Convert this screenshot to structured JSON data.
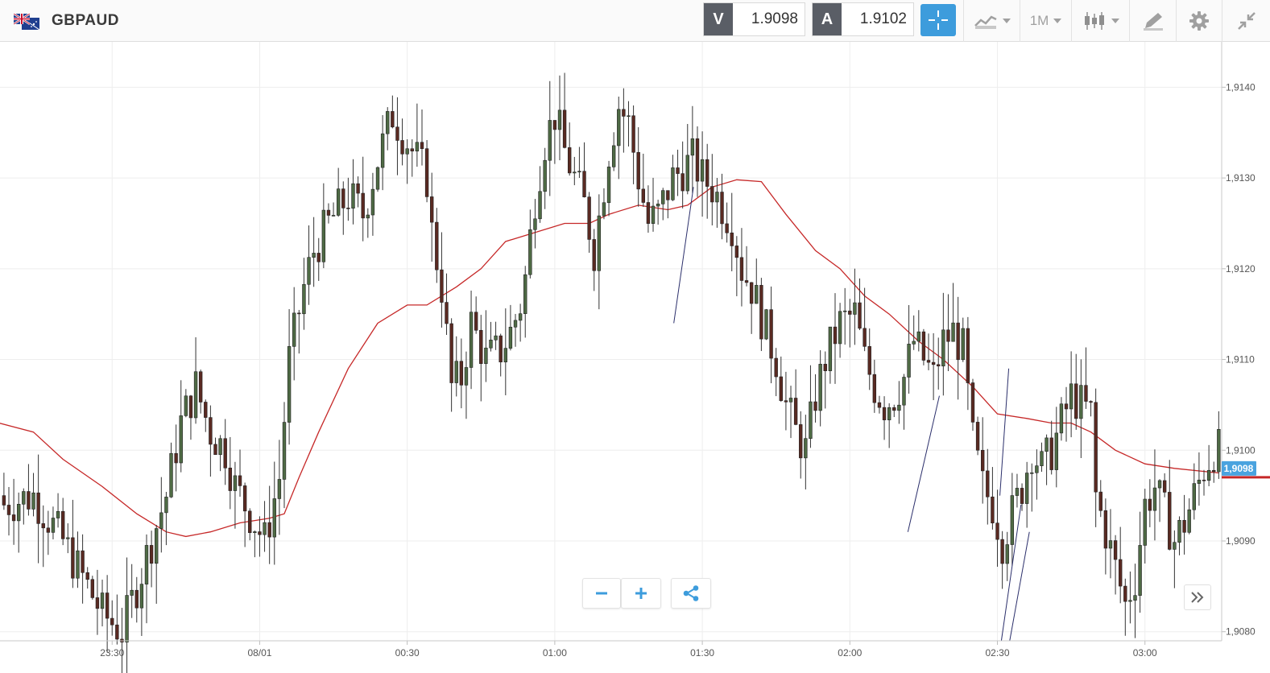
{
  "header": {
    "symbol": "GBPAUD",
    "sell_label": "V",
    "sell_price": "1.9098",
    "buy_label": "A",
    "buy_price": "1.9102",
    "timeframe": "1M"
  },
  "colors": {
    "accent": "#3d9cdc",
    "bull_candle": "#4f6b45",
    "bear_candle": "#5a2a22",
    "moving_average": "#c62828",
    "price_tag": "#4aa3df",
    "price_line": "#c62828",
    "trendline": "#2b2f6b"
  },
  "chart_data": {
    "type": "candlestick",
    "title": "",
    "ylim": [
      1.9079,
      1.9145
    ],
    "y_ticks": [
      "1,9080",
      "1,9090",
      "1,9100",
      "1,9110",
      "1,9120",
      "1,9130",
      "1,9140"
    ],
    "x_ticks": [
      "23:30",
      "08/01",
      "00:30",
      "01:00",
      "01:30",
      "02:00",
      "02:30",
      "03:00"
    ],
    "x_tick_minutes": [
      30,
      60,
      90,
      120,
      150,
      180,
      210,
      240
    ],
    "x_range_minutes": [
      7.2,
      255.6
    ],
    "current_price_label": "1,9098",
    "current_price": 1.9098,
    "close_anchors": [
      [
        8,
        1.9094
      ],
      [
        14,
        1.9095
      ],
      [
        20,
        1.909
      ],
      [
        24,
        1.9086
      ],
      [
        28,
        1.9082
      ],
      [
        32,
        1.908
      ],
      [
        35,
        1.9085
      ],
      [
        38,
        1.909
      ],
      [
        41,
        1.9095
      ],
      [
        44,
        1.9103
      ],
      [
        47,
        1.9107
      ],
      [
        50,
        1.9102
      ],
      [
        53,
        1.91
      ],
      [
        55,
        1.9096
      ],
      [
        58,
        1.9093
      ],
      [
        61,
        1.909
      ],
      [
        64,
        1.9097
      ],
      [
        66,
        1.911
      ],
      [
        69,
        1.9118
      ],
      [
        71,
        1.9122
      ],
      [
        74,
        1.9125
      ],
      [
        78,
        1.9128
      ],
      [
        81,
        1.9126
      ],
      [
        84,
        1.9132
      ],
      [
        87,
        1.9137
      ],
      [
        91,
        1.9133
      ],
      [
        94,
        1.913
      ],
      [
        95,
        1.9124
      ],
      [
        97,
        1.9118
      ],
      [
        99,
        1.9107
      ],
      [
        101,
        1.9108
      ],
      [
        103,
        1.9114
      ],
      [
        106,
        1.911
      ],
      [
        109,
        1.9111
      ],
      [
        111,
        1.9113
      ],
      [
        113,
        1.9116
      ],
      [
        114,
        1.9119
      ],
      [
        116,
        1.9128
      ],
      [
        118,
        1.9134
      ],
      [
        120,
        1.9137
      ],
      [
        122,
        1.9133
      ],
      [
        124,
        1.913
      ],
      [
        126,
        1.9127
      ],
      [
        128,
        1.9122
      ],
      [
        131,
        1.9133
      ],
      [
        133,
        1.9138
      ],
      [
        135,
        1.9136
      ],
      [
        137,
        1.913
      ],
      [
        139,
        1.9125
      ],
      [
        141,
        1.9126
      ],
      [
        144,
        1.913
      ],
      [
        148,
        1.9132
      ],
      [
        150,
        1.913
      ],
      [
        152,
        1.9129
      ],
      [
        154,
        1.9127
      ],
      [
        156,
        1.9125
      ],
      [
        158,
        1.912
      ],
      [
        160,
        1.9118
      ],
      [
        163,
        1.9113
      ],
      [
        165,
        1.911
      ],
      [
        167,
        1.9105
      ],
      [
        169,
        1.9102
      ],
      [
        171,
        1.91
      ],
      [
        173,
        1.9106
      ],
      [
        175,
        1.911
      ],
      [
        178,
        1.9114
      ],
      [
        181,
        1.9115
      ],
      [
        183,
        1.911
      ],
      [
        185,
        1.9107
      ],
      [
        187,
        1.9105
      ],
      [
        189,
        1.9106
      ],
      [
        191,
        1.9108
      ],
      [
        193,
        1.9112
      ],
      [
        195,
        1.911
      ],
      [
        197,
        1.9108
      ],
      [
        199,
        1.9112
      ],
      [
        201,
        1.9113
      ],
      [
        203,
        1.9111
      ],
      [
        205,
        1.9101
      ],
      [
        207,
        1.9096
      ],
      [
        209,
        1.9094
      ],
      [
        211,
        1.909
      ],
      [
        213,
        1.9093
      ],
      [
        215,
        1.9096
      ],
      [
        217,
        1.91
      ],
      [
        219,
        1.9098
      ],
      [
        221,
        1.91
      ],
      [
        223,
        1.9103
      ],
      [
        225,
        1.9106
      ],
      [
        227,
        1.9105
      ],
      [
        229,
        1.9104
      ],
      [
        230,
        1.9095
      ],
      [
        232,
        1.9091
      ],
      [
        234,
        1.9087
      ],
      [
        236,
        1.9083
      ],
      [
        238,
        1.9086
      ],
      [
        240,
        1.9094
      ],
      [
        242,
        1.9096
      ],
      [
        244,
        1.9093
      ],
      [
        246,
        1.909
      ],
      [
        248,
        1.9092
      ],
      [
        250,
        1.9095
      ],
      [
        252,
        1.9098
      ],
      [
        254,
        1.91
      ]
    ],
    "moving_average": [
      [
        7,
        1.9103
      ],
      [
        14,
        1.9102
      ],
      [
        20,
        1.9099
      ],
      [
        28,
        1.9096
      ],
      [
        35,
        1.9093
      ],
      [
        41,
        1.9091
      ],
      [
        45,
        1.90905
      ],
      [
        50,
        1.9091
      ],
      [
        56,
        1.9092
      ],
      [
        62,
        1.90925
      ],
      [
        65,
        1.9093
      ],
      [
        68,
        1.9097
      ],
      [
        72,
        1.9102
      ],
      [
        78,
        1.9109
      ],
      [
        84,
        1.9114
      ],
      [
        90,
        1.9116
      ],
      [
        94,
        1.9116
      ],
      [
        100,
        1.9118
      ],
      [
        105,
        1.912
      ],
      [
        110,
        1.9123
      ],
      [
        116,
        1.9124
      ],
      [
        122,
        1.9125
      ],
      [
        127,
        1.9125
      ],
      [
        131,
        1.9126
      ],
      [
        137,
        1.9127
      ],
      [
        143,
        1.91265
      ],
      [
        147,
        1.9127
      ],
      [
        152,
        1.9129
      ],
      [
        157,
        1.91298
      ],
      [
        162,
        1.91296
      ],
      [
        167,
        1.9126
      ],
      [
        173,
        1.9122
      ],
      [
        178,
        1.912
      ],
      [
        183,
        1.9117
      ],
      [
        188,
        1.9115
      ],
      [
        194,
        1.9112
      ],
      [
        199,
        1.911
      ],
      [
        205,
        1.9107
      ],
      [
        210,
        1.9104
      ],
      [
        216,
        1.91035
      ],
      [
        221,
        1.9103
      ],
      [
        225,
        1.9103
      ],
      [
        229,
        1.9102
      ],
      [
        234,
        1.91
      ],
      [
        240,
        1.90985
      ],
      [
        246,
        1.9098
      ],
      [
        255,
        1.90975
      ]
    ],
    "trendlines": [
      [
        [
          148.2,
          1.9129
        ],
        [
          144.2,
          1.9114
        ]
      ],
      [
        [
          212.3,
          1.9109
        ],
        [
          210.5,
          1.9095
        ]
      ],
      [
        [
          198.2,
          1.9106
        ],
        [
          191.8,
          1.9091
        ]
      ],
      [
        [
          214.8,
          1.9094
        ],
        [
          210.8,
          1.9079
        ]
      ],
      [
        [
          216.5,
          1.9091
        ],
        [
          212.5,
          1.9079
        ]
      ]
    ]
  }
}
